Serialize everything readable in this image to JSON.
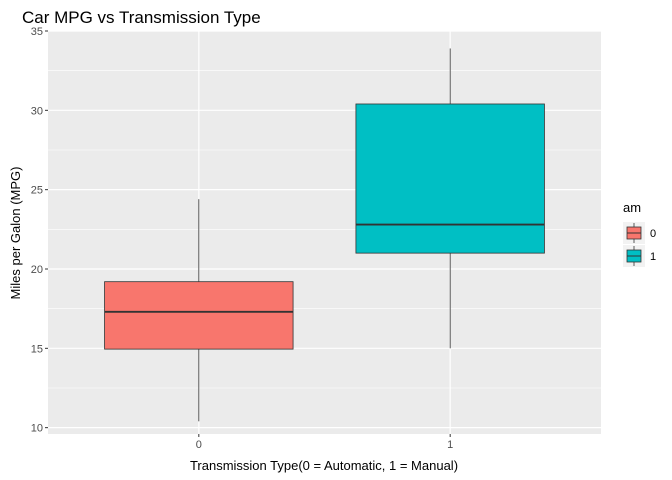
{
  "chart_data": {
    "type": "box",
    "title": "Car MPG vs Transmission Type",
    "xlabel": "Transmission Type(0 = Automatic, 1 = Manual)",
    "ylabel": "Miles per Galon (MPG)",
    "categories": [
      "0",
      "1"
    ],
    "ylim": [
      9.6,
      35.0
    ],
    "yticks": [
      10,
      15,
      20,
      25,
      30,
      35
    ],
    "grid": true,
    "legend": {
      "title": "am",
      "position": "right",
      "entries": [
        {
          "label": "0",
          "color": "#F8766D"
        },
        {
          "label": "1",
          "color": "#00BFC4"
        }
      ]
    },
    "boxes": [
      {
        "category": "0",
        "min": 10.4,
        "q1": 14.95,
        "median": 17.3,
        "q3": 19.2,
        "max": 24.4,
        "color": "#F8766D"
      },
      {
        "category": "1",
        "min": 15.0,
        "q1": 21.0,
        "median": 22.8,
        "q3": 30.4,
        "max": 33.9,
        "color": "#00BFC4"
      }
    ]
  }
}
